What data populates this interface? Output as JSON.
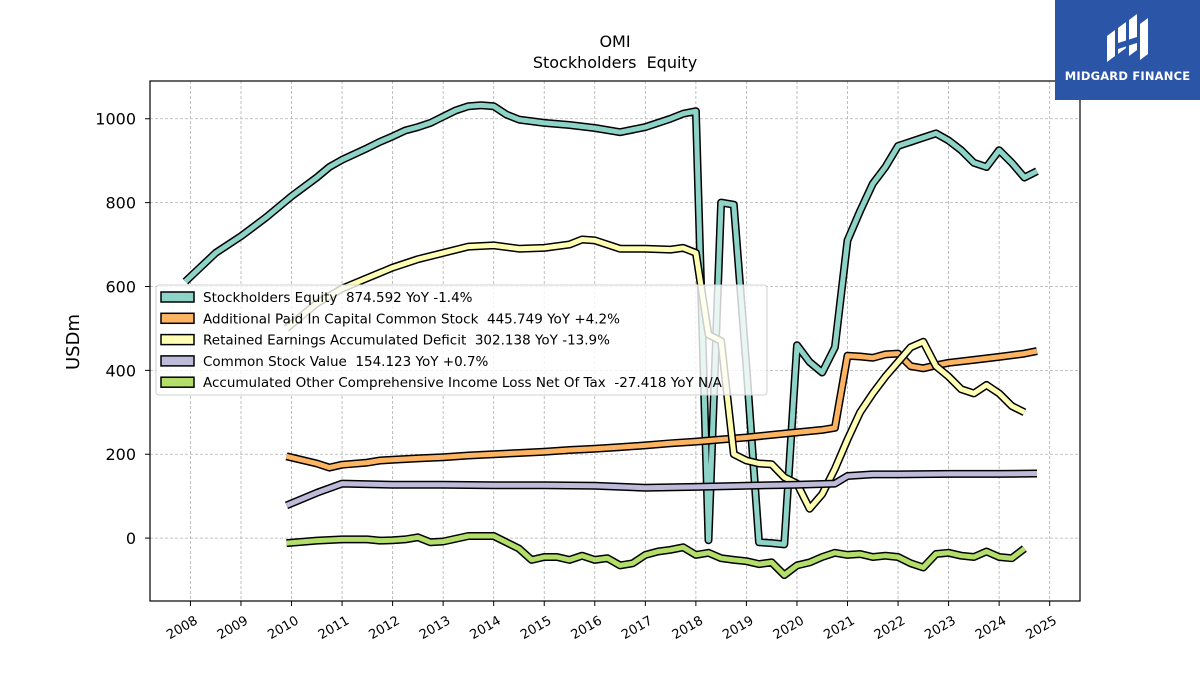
{
  "brand": {
    "name": "MIDGARD FINANCE",
    "bg_color": "#2b56a8",
    "icon": "midgard-logo-icon"
  },
  "chart_data": {
    "type": "line",
    "title": "OMI",
    "subtitle": "Stockholders  Equity",
    "xlabel": "",
    "ylabel": "USDm",
    "xlim": [
      2007.2,
      2025.6
    ],
    "ylim": [
      -150,
      1090
    ],
    "x_ticks": [
      "2008",
      "2009",
      "2010",
      "2011",
      "2012",
      "2013",
      "2014",
      "2015",
      "2016",
      "2017",
      "2018",
      "2019",
      "2020",
      "2021",
      "2022",
      "2023",
      "2024",
      "2025"
    ],
    "y_ticks": [
      0,
      200,
      400,
      600,
      800,
      1000
    ],
    "grid": true,
    "legend_position": "center-left",
    "series": [
      {
        "name": "Stockholders Equity",
        "legend_label": "Stockholders Equity  874.592 YoY -1.4%",
        "color": "#8dd3c7",
        "points": [
          [
            2007.9,
            612
          ],
          [
            2008.5,
            680
          ],
          [
            2009.0,
            720
          ],
          [
            2009.5,
            765
          ],
          [
            2010.0,
            815
          ],
          [
            2010.5,
            860
          ],
          [
            2010.75,
            885
          ],
          [
            2011.0,
            902
          ],
          [
            2011.5,
            930
          ],
          [
            2011.75,
            945
          ],
          [
            2012.0,
            958
          ],
          [
            2012.25,
            972
          ],
          [
            2012.5,
            980
          ],
          [
            2012.75,
            990
          ],
          [
            2013.0,
            1005
          ],
          [
            2013.25,
            1020
          ],
          [
            2013.5,
            1030
          ],
          [
            2013.75,
            1032
          ],
          [
            2014.0,
            1030
          ],
          [
            2014.25,
            1010
          ],
          [
            2014.5,
            998
          ],
          [
            2015.0,
            990
          ],
          [
            2015.5,
            985
          ],
          [
            2016.0,
            978
          ],
          [
            2016.5,
            968
          ],
          [
            2017.0,
            980
          ],
          [
            2017.5,
            1000
          ],
          [
            2017.75,
            1012
          ],
          [
            2018.0,
            1018
          ],
          [
            2018.25,
            -5
          ],
          [
            2018.5,
            800
          ],
          [
            2018.75,
            795
          ],
          [
            2019.0,
            410
          ],
          [
            2019.25,
            -10
          ],
          [
            2019.5,
            -12
          ],
          [
            2019.75,
            -15
          ],
          [
            2020.0,
            460
          ],
          [
            2020.25,
            420
          ],
          [
            2020.5,
            395
          ],
          [
            2020.75,
            455
          ],
          [
            2021.0,
            710
          ],
          [
            2021.25,
            780
          ],
          [
            2021.5,
            845
          ],
          [
            2021.75,
            885
          ],
          [
            2022.0,
            935
          ],
          [
            2022.25,
            945
          ],
          [
            2022.5,
            955
          ],
          [
            2022.75,
            965
          ],
          [
            2023.0,
            948
          ],
          [
            2023.25,
            925
          ],
          [
            2023.5,
            895
          ],
          [
            2023.75,
            885
          ],
          [
            2024.0,
            925
          ],
          [
            2024.25,
            895
          ],
          [
            2024.5,
            860
          ],
          [
            2024.75,
            875
          ]
        ]
      },
      {
        "name": "Additional Paid In Capital Common Stock",
        "legend_label": "Additional Paid In Capital Common Stock  445.749 YoY +4.2%",
        "color": "#fdb462",
        "points": [
          [
            2009.9,
            195
          ],
          [
            2010.5,
            178
          ],
          [
            2010.75,
            168
          ],
          [
            2011.0,
            175
          ],
          [
            2011.5,
            180
          ],
          [
            2011.75,
            185
          ],
          [
            2012.0,
            187
          ],
          [
            2012.5,
            190
          ],
          [
            2013.0,
            193
          ],
          [
            2013.5,
            197
          ],
          [
            2014.0,
            200
          ],
          [
            2014.5,
            203
          ],
          [
            2015.0,
            206
          ],
          [
            2015.5,
            210
          ],
          [
            2016.0,
            213
          ],
          [
            2016.5,
            217
          ],
          [
            2017.0,
            221
          ],
          [
            2017.5,
            226
          ],
          [
            2018.0,
            230
          ],
          [
            2018.5,
            235
          ],
          [
            2019.0,
            240
          ],
          [
            2019.5,
            246
          ],
          [
            2020.0,
            252
          ],
          [
            2020.5,
            258
          ],
          [
            2020.75,
            263
          ],
          [
            2021.0,
            435
          ],
          [
            2021.25,
            433
          ],
          [
            2021.5,
            430
          ],
          [
            2021.75,
            438
          ],
          [
            2022.0,
            440
          ],
          [
            2022.25,
            410
          ],
          [
            2022.5,
            405
          ],
          [
            2022.75,
            412
          ],
          [
            2023.0,
            418
          ],
          [
            2023.5,
            425
          ],
          [
            2024.0,
            432
          ],
          [
            2024.5,
            440
          ],
          [
            2024.75,
            446
          ]
        ]
      },
      {
        "name": "Retained Earnings Accumulated Deficit",
        "legend_label": "Retained Earnings Accumulated Deficit  302.138 YoY -13.9%",
        "color": "#ffffb3",
        "points": [
          [
            2009.9,
            500
          ],
          [
            2010.5,
            560
          ],
          [
            2011.0,
            595
          ],
          [
            2011.5,
            620
          ],
          [
            2012.0,
            645
          ],
          [
            2012.5,
            665
          ],
          [
            2013.0,
            680
          ],
          [
            2013.5,
            695
          ],
          [
            2014.0,
            698
          ],
          [
            2014.5,
            690
          ],
          [
            2015.0,
            692
          ],
          [
            2015.5,
            700
          ],
          [
            2015.75,
            712
          ],
          [
            2016.0,
            710
          ],
          [
            2016.5,
            690
          ],
          [
            2017.0,
            690
          ],
          [
            2017.5,
            688
          ],
          [
            2017.75,
            692
          ],
          [
            2018.0,
            680
          ],
          [
            2018.25,
            485
          ],
          [
            2018.5,
            470
          ],
          [
            2018.75,
            200
          ],
          [
            2019.0,
            185
          ],
          [
            2019.25,
            178
          ],
          [
            2019.5,
            176
          ],
          [
            2019.75,
            145
          ],
          [
            2020.0,
            130
          ],
          [
            2020.25,
            70
          ],
          [
            2020.5,
            105
          ],
          [
            2020.75,
            165
          ],
          [
            2021.0,
            235
          ],
          [
            2021.25,
            300
          ],
          [
            2021.5,
            345
          ],
          [
            2021.75,
            385
          ],
          [
            2022.0,
            420
          ],
          [
            2022.25,
            455
          ],
          [
            2022.5,
            468
          ],
          [
            2022.75,
            410
          ],
          [
            2023.0,
            385
          ],
          [
            2023.25,
            355
          ],
          [
            2023.5,
            345
          ],
          [
            2023.75,
            365
          ],
          [
            2024.0,
            345
          ],
          [
            2024.25,
            315
          ],
          [
            2024.5,
            300
          ]
        ]
      },
      {
        "name": "Common Stock Value",
        "legend_label": "Common Stock Value  154.123 YoY +0.7%",
        "color": "#bebada",
        "points": [
          [
            2009.9,
            78
          ],
          [
            2010.5,
            108
          ],
          [
            2011.0,
            130
          ],
          [
            2012.0,
            127
          ],
          [
            2013.0,
            127
          ],
          [
            2014.0,
            126
          ],
          [
            2015.0,
            126
          ],
          [
            2016.0,
            125
          ],
          [
            2017.0,
            120
          ],
          [
            2018.0,
            122
          ],
          [
            2019.0,
            125
          ],
          [
            2020.0,
            127
          ],
          [
            2020.75,
            130
          ],
          [
            2021.0,
            148
          ],
          [
            2021.5,
            152
          ],
          [
            2022.0,
            152
          ],
          [
            2023.0,
            153
          ],
          [
            2024.0,
            153
          ],
          [
            2024.75,
            154
          ]
        ]
      },
      {
        "name": "Accumulated Other Comprehensive Income Loss Net Of Tax",
        "legend_label": "Accumulated Other Comprehensive Income Loss Net Of Tax  -27.418 YoY N/A",
        "color": "#b3de69",
        "points": [
          [
            2009.9,
            -12
          ],
          [
            2010.5,
            -6
          ],
          [
            2011.0,
            -3
          ],
          [
            2011.5,
            -3
          ],
          [
            2011.75,
            -6
          ],
          [
            2012.0,
            -5
          ],
          [
            2012.25,
            -3
          ],
          [
            2012.5,
            2
          ],
          [
            2012.75,
            -10
          ],
          [
            2013.0,
            -8
          ],
          [
            2013.5,
            5
          ],
          [
            2014.0,
            5
          ],
          [
            2014.5,
            -25
          ],
          [
            2014.75,
            -52
          ],
          [
            2015.0,
            -45
          ],
          [
            2015.25,
            -45
          ],
          [
            2015.5,
            -52
          ],
          [
            2015.75,
            -42
          ],
          [
            2016.0,
            -52
          ],
          [
            2016.25,
            -48
          ],
          [
            2016.5,
            -65
          ],
          [
            2016.75,
            -60
          ],
          [
            2017.0,
            -40
          ],
          [
            2017.25,
            -32
          ],
          [
            2017.5,
            -28
          ],
          [
            2017.75,
            -22
          ],
          [
            2018.0,
            -40
          ],
          [
            2018.25,
            -35
          ],
          [
            2018.5,
            -48
          ],
          [
            2018.75,
            -52
          ],
          [
            2019.0,
            -55
          ],
          [
            2019.25,
            -62
          ],
          [
            2019.5,
            -58
          ],
          [
            2019.75,
            -88
          ],
          [
            2020.0,
            -65
          ],
          [
            2020.25,
            -58
          ],
          [
            2020.5,
            -45
          ],
          [
            2020.75,
            -35
          ],
          [
            2021.0,
            -40
          ],
          [
            2021.25,
            -38
          ],
          [
            2021.5,
            -45
          ],
          [
            2021.75,
            -42
          ],
          [
            2022.0,
            -45
          ],
          [
            2022.25,
            -60
          ],
          [
            2022.5,
            -70
          ],
          [
            2022.75,
            -38
          ],
          [
            2023.0,
            -35
          ],
          [
            2023.25,
            -42
          ],
          [
            2023.5,
            -45
          ],
          [
            2023.75,
            -32
          ],
          [
            2024.0,
            -45
          ],
          [
            2024.25,
            -48
          ],
          [
            2024.5,
            -25
          ]
        ]
      }
    ]
  }
}
